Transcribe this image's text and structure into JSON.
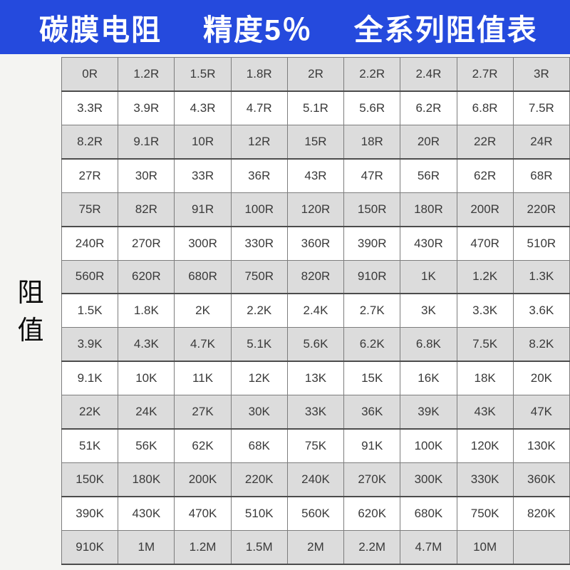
{
  "header": {
    "product": "碳膜电阻",
    "precision": "精度5％",
    "series": "全系列阻值表",
    "bg_color": "#254add",
    "text_color": "#ffffff"
  },
  "side_label": {
    "text": "阻值",
    "bg_color": "#f4f4f2",
    "text_color": "#0c0c0c"
  },
  "table": {
    "columns": 9,
    "row_count": 15,
    "row_gray_color": "#dcdcdc",
    "row_white_color": "#ffffff",
    "border_color": "#7d7d7d",
    "cell_text_color": "#3a3a3a",
    "rows": [
      [
        "0R",
        "1.2R",
        "1.5R",
        "1.8R",
        "2R",
        "2.2R",
        "2.4R",
        "2.7R",
        "3R"
      ],
      [
        "3.3R",
        "3.9R",
        "4.3R",
        "4.7R",
        "5.1R",
        "5.6R",
        "6.2R",
        "6.8R",
        "7.5R"
      ],
      [
        "8.2R",
        "9.1R",
        "10R",
        "12R",
        "15R",
        "18R",
        "20R",
        "22R",
        "24R"
      ],
      [
        "27R",
        "30R",
        "33R",
        "36R",
        "43R",
        "47R",
        "56R",
        "62R",
        "68R"
      ],
      [
        "75R",
        "82R",
        "91R",
        "100R",
        "120R",
        "150R",
        "180R",
        "200R",
        "220R"
      ],
      [
        "240R",
        "270R",
        "300R",
        "330R",
        "360R",
        "390R",
        "430R",
        "470R",
        "510R"
      ],
      [
        "560R",
        "620R",
        "680R",
        "750R",
        "820R",
        "910R",
        "1K",
        "1.2K",
        "1.3K"
      ],
      [
        "1.5K",
        "1.8K",
        "2K",
        "2.2K",
        "2.4K",
        "2.7K",
        "3K",
        "3.3K",
        "3.6K"
      ],
      [
        "3.9K",
        "4.3K",
        "4.7K",
        "5.1K",
        "5.6K",
        "6.2K",
        "6.8K",
        "7.5K",
        "8.2K"
      ],
      [
        "9.1K",
        "10K",
        "11K",
        "12K",
        "13K",
        "15K",
        "16K",
        "18K",
        "20K"
      ],
      [
        "22K",
        "24K",
        "27K",
        "30K",
        "33K",
        "36K",
        "39K",
        "43K",
        "47K"
      ],
      [
        "51K",
        "56K",
        "62K",
        "68K",
        "75K",
        "91K",
        "100K",
        "120K",
        "130K"
      ],
      [
        "150K",
        "180K",
        "200K",
        "220K",
        "240K",
        "270K",
        "300K",
        "330K",
        "360K"
      ],
      [
        "390K",
        "430K",
        "470K",
        "510K",
        "560K",
        "620K",
        "680K",
        "750K",
        "820K"
      ],
      [
        "910K",
        "1M",
        "1.2M",
        "1.5M",
        "2M",
        "2.2M",
        "4.7M",
        "10M",
        ""
      ]
    ]
  }
}
